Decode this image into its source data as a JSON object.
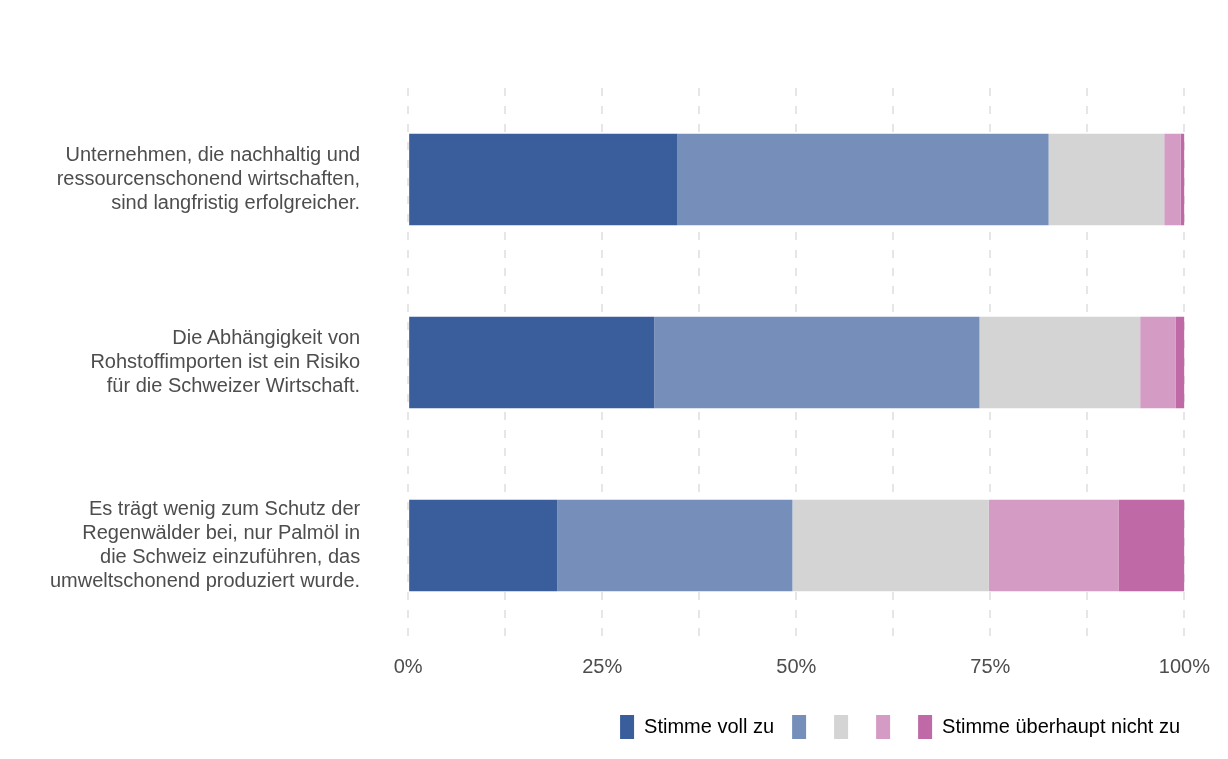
{
  "chart_data": {
    "type": "bar",
    "orientation": "horizontal",
    "stacked": true,
    "categories": [
      "Unternehmen, die nachhaltig und ressourcenschonend wirtschaften, sind langfristig erfolgreicher.",
      "Die Abhängigkeit von Rohstoffimporten ist ein Risiko für die Schweizer Wirtschaft.",
      "Es trägt wenig zum Schutz der Regenwälder bei, nur Palmöl in die Schweiz einzuführen, das umweltschonend produziert wurde."
    ],
    "series": [
      {
        "name": "Stimme voll zu",
        "color": "#3a5d9c",
        "values": [
          34.7,
          31.7,
          19.2
        ]
      },
      {
        "color": "#758fba",
        "values": [
          47.8,
          41.9,
          30.3
        ]
      },
      {
        "color": "#d4d4d4",
        "values": [
          14.9,
          20.7,
          25.3
        ]
      },
      {
        "color": "#d49bc4",
        "values": [
          2.1,
          4.6,
          16.7
        ]
      },
      {
        "name": "Stimme überhaupt nicht zu",
        "color": "#bf6aa6",
        "values": [
          0.5,
          1.1,
          8.5
        ]
      }
    ],
    "xlim": [
      0,
      100
    ],
    "xticks": [
      {
        "value": 0,
        "label": "0%"
      },
      {
        "value": 12.5,
        "label": null
      },
      {
        "value": 25,
        "label": "25%"
      },
      {
        "value": 37.5,
        "label": null
      },
      {
        "value": 50,
        "label": "50%"
      },
      {
        "value": 62.5,
        "label": null
      },
      {
        "value": 75,
        "label": "75%"
      },
      {
        "value": 87.5,
        "label": null
      },
      {
        "value": 100,
        "label": "100%"
      }
    ],
    "grid": "x",
    "legend": "bottom"
  }
}
